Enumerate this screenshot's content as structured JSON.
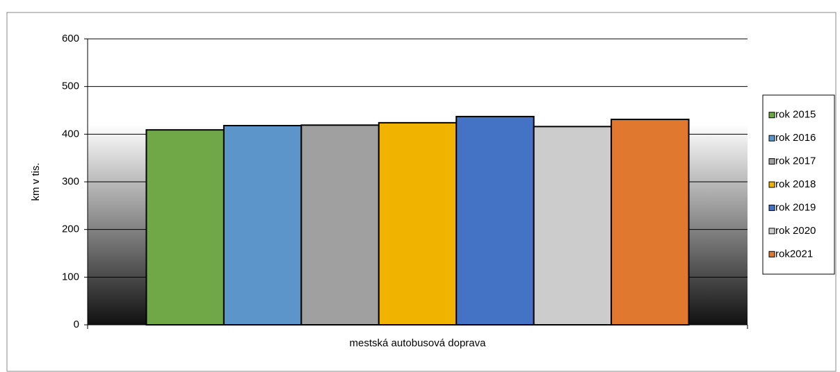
{
  "chart_data": {
    "type": "bar",
    "categories": [
      "mestská autobusová doprava"
    ],
    "y_label": "km v tis.",
    "series": [
      {
        "name": "rok 2015",
        "color": "#70a848",
        "values": [
          409
        ]
      },
      {
        "name": "rok 2016",
        "color": "#5b95c9",
        "values": [
          418
        ]
      },
      {
        "name": "rok 2017",
        "color": "#a0a0a0",
        "values": [
          419
        ]
      },
      {
        "name": "rok 2018",
        "color": "#f0b400",
        "values": [
          424
        ]
      },
      {
        "name": "rok 2019",
        "color": "#4472c4",
        "values": [
          437
        ]
      },
      {
        "name": "rok 2020",
        "color": "#cccccc",
        "values": [
          416
        ]
      },
      {
        "name": "rok2021",
        "color": "#e07830",
        "values": [
          431
        ]
      }
    ],
    "ylim": [
      0,
      600
    ],
    "yticks": [
      0,
      100,
      200,
      300,
      400,
      500,
      600
    ],
    "grid": true,
    "legend": "right"
  }
}
